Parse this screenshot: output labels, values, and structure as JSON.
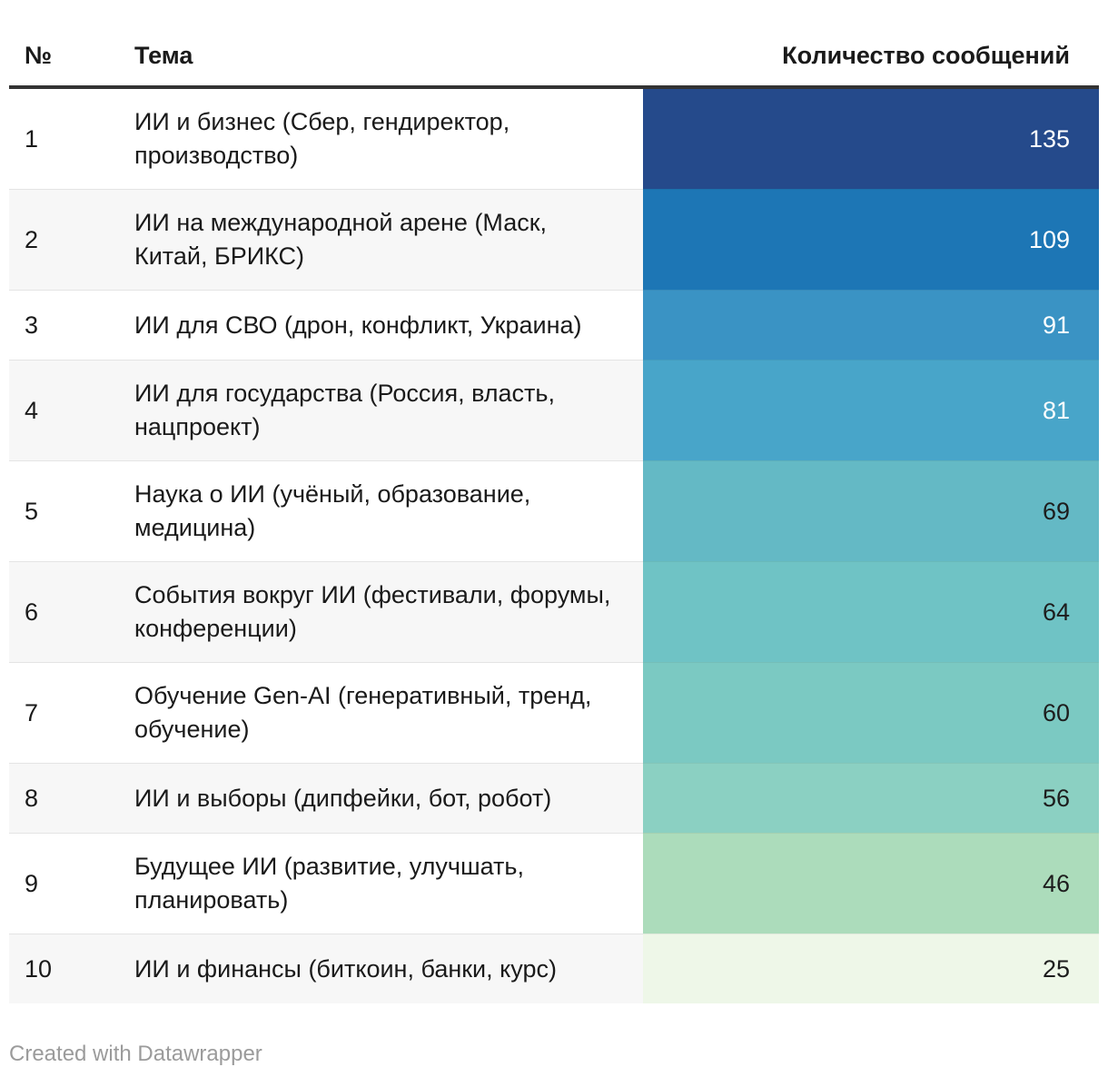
{
  "table": {
    "columns": {
      "num": "№",
      "topic": "Тема",
      "count": "Количество сообщений"
    },
    "rows": [
      {
        "num": "1",
        "topic": "ИИ и бизнес (Сбер, гендиректор, производство)",
        "value": "135",
        "color": "#254a8b",
        "text_color": "#ffffff"
      },
      {
        "num": "2",
        "topic": "ИИ на международной арене (Маск, Китай, БРИКС)",
        "value": "109",
        "color": "#1d76b5",
        "text_color": "#ffffff"
      },
      {
        "num": "3",
        "topic": "ИИ для СВО (дрон, конфликт, Украина)",
        "value": "91",
        "color": "#3a93c4",
        "text_color": "#ffffff"
      },
      {
        "num": "4",
        "topic": "ИИ для государства (Россия, власть, нацпроект)",
        "value": "81",
        "color": "#48a5c9",
        "text_color": "#ffffff"
      },
      {
        "num": "5",
        "topic": "Наука о ИИ (учёный, образование, медицина)",
        "value": "69",
        "color": "#64b9c5",
        "text_color": "#1d1d1d"
      },
      {
        "num": "6",
        "topic": "События вокруг ИИ (фестивали, форумы, конференции)",
        "value": "64",
        "color": "#6fc3c5",
        "text_color": "#1d1d1d"
      },
      {
        "num": "7",
        "topic": "Обучение Gen-AI (генеративный, тренд, обучение)",
        "value": "60",
        "color": "#7bc9c2",
        "text_color": "#1d1d1d"
      },
      {
        "num": "8",
        "topic": "ИИ и выборы (дипфейки, бот, робот)",
        "value": "56",
        "color": "#8bd0c2",
        "text_color": "#1d1d1d"
      },
      {
        "num": "9",
        "topic": "Будущее ИИ (развитие, улучшать, планировать)",
        "value": "46",
        "color": "#acdcbb",
        "text_color": "#1d1d1d"
      },
      {
        "num": "10",
        "topic": "ИИ и финансы (биткоин, банки, курс)",
        "value": "25",
        "color": "#eef7e8",
        "text_color": "#1d1d1d"
      }
    ]
  },
  "footer": {
    "credit": "Created with Datawrapper"
  },
  "chart_data": {
    "type": "table",
    "columns": [
      "№",
      "Тема",
      "Количество сообщений"
    ],
    "rows": [
      [
        1,
        "ИИ и бизнес (Сбер, гендиректор, производство)",
        135
      ],
      [
        2,
        "ИИ на международной арене (Маск, Китай, БРИКС)",
        109
      ],
      [
        3,
        "ИИ для СВО (дрон, конфликт, Украина)",
        91
      ],
      [
        4,
        "ИИ для государства (Россия, власть, нацпроект)",
        81
      ],
      [
        5,
        "Наука о ИИ (учёный, образование, медицина)",
        69
      ],
      [
        6,
        "События вокруг ИИ (фестивали, форумы, конференции)",
        64
      ],
      [
        7,
        "Обучение Gen-AI (генеративный, тренд, обучение)",
        60
      ],
      [
        8,
        "ИИ и выборы (дипфейки, бот, робот)",
        56
      ],
      [
        9,
        "Будущее ИИ (развитие, улучшать, планировать)",
        46
      ],
      [
        10,
        "ИИ и финансы (биткоин, банки, курс)",
        25
      ]
    ],
    "heatmap_column": "Количество сообщений",
    "value_range": [
      25,
      135
    ],
    "palette": [
      "#254a8b",
      "#1d76b5",
      "#3a93c4",
      "#48a5c9",
      "#64b9c5",
      "#6fc3c5",
      "#7bc9c2",
      "#8bd0c2",
      "#acdcbb",
      "#eef7e8"
    ],
    "legend_position": "none",
    "grid": false
  }
}
